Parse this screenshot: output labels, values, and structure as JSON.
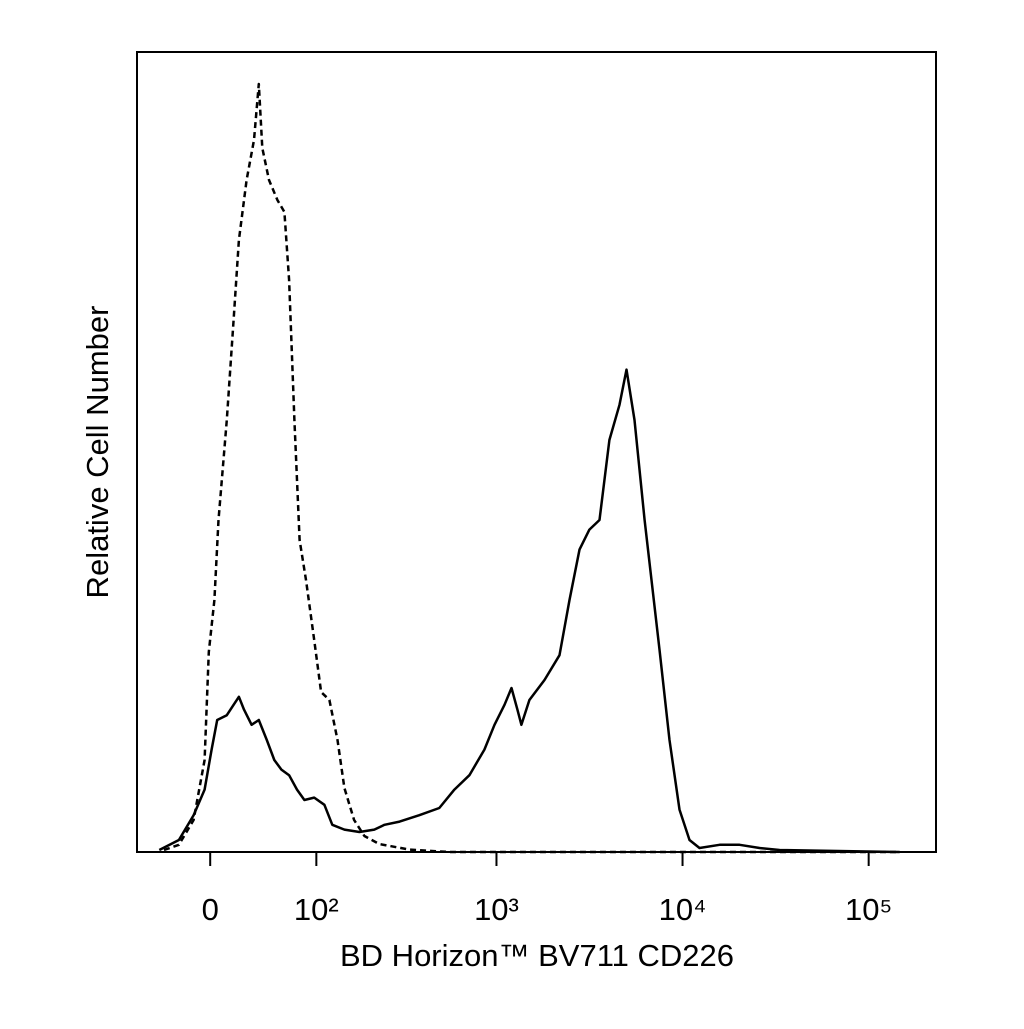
{
  "chart_data": {
    "type": "line",
    "x_label": "BD Horizon™ BV711 CD226",
    "y_label": "Relative Cell Number",
    "x_scale": "biexponential",
    "xlim": [
      -60,
      230000
    ],
    "xticks": [
      0,
      {
        "value": 100,
        "label": "10²"
      },
      {
        "value": 1000,
        "label": "10³"
      },
      {
        "value": 10000,
        "label": "10⁴"
      },
      {
        "value": 100000,
        "label": "10⁵"
      }
    ],
    "ylim": [
      0,
      100
    ],
    "series": [
      {
        "color": "#000000",
        "style": "dashed",
        "x": [
          -35,
          -23,
          -12,
          -4,
          -1,
          3,
          6,
          12,
          17,
          21,
          27,
          33,
          37,
          40,
          46,
          54,
          61,
          66,
          72,
          78,
          86,
          97,
          107,
          120,
          134,
          147,
          167,
          191,
          231,
          338,
          557,
          3580,
          146700
        ],
        "values": [
          0.25,
          0.9,
          4,
          11.5,
          25,
          31.5,
          41.5,
          54,
          66.5,
          76.5,
          84,
          89,
          96,
          88,
          84,
          81.5,
          80,
          71.5,
          54,
          39,
          34,
          26.5,
          20,
          19,
          14,
          8,
          4,
          2,
          1,
          0.3,
          0,
          0,
          0
        ]
      },
      {
        "color": "#000000",
        "style": "solid",
        "x": [
          -39,
          -23,
          -12,
          -4,
          1,
          5,
          12,
          17,
          21,
          25,
          31,
          37,
          44,
          51,
          58,
          66,
          75,
          84,
          97,
          112,
          125,
          147,
          179,
          217,
          247,
          299,
          383,
          492,
          593,
          715,
          861,
          976,
          1104,
          1204,
          1296,
          1362,
          1504,
          1812,
          2181,
          2470,
          2796,
          3161,
          3579,
          4048,
          4582,
          5000,
          5522,
          6252,
          6809,
          7517,
          8509,
          9634,
          10904,
          12342,
          15811,
          20259,
          25955,
          33234,
          146740
        ],
        "values": [
          0.25,
          1.5,
          4.6,
          7.8,
          12.8,
          16.5,
          17.1,
          18.4,
          19.4,
          17.8,
          15.9,
          16.5,
          14,
          11.5,
          10.3,
          9.6,
          7.8,
          6.5,
          6.8,
          5.9,
          3.4,
          2.8,
          2.5,
          2.8,
          3.4,
          3.8,
          4.6,
          5.5,
          7.8,
          9.6,
          12.8,
          15.9,
          18.4,
          20.5,
          17.8,
          15.9,
          19,
          21.5,
          24.6,
          31.5,
          37.8,
          40.3,
          41.5,
          51.5,
          55.9,
          60.3,
          54,
          41.5,
          34,
          25.3,
          14,
          5.3,
          1.5,
          0.5,
          0.9,
          0.9,
          0.5,
          0.25,
          0
        ]
      }
    ]
  }
}
